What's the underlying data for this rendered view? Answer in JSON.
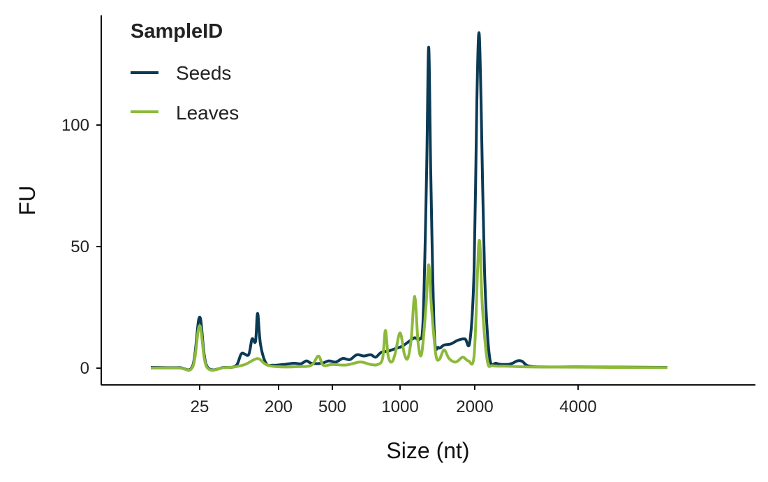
{
  "chart_data": {
    "type": "line",
    "title": "",
    "xlabel": "Size (nt)",
    "ylabel": "FU",
    "ylim": [
      -7,
      145
    ],
    "grid": false,
    "legend": {
      "title": "SampleID",
      "placement": "top-left"
    },
    "x_ticks": [
      "25",
      "200",
      "500",
      "1000",
      "2000",
      "4000"
    ],
    "y_ticks": [
      0,
      50,
      100
    ],
    "series": [
      {
        "name": "Seeds",
        "color": "#0b3a55",
        "points": [
          [
            -0.6,
            0.3
          ],
          [
            -0.2,
            0.2
          ],
          [
            0.0,
            1.0
          ],
          [
            0.1,
            21.0
          ],
          [
            0.2,
            1.0
          ],
          [
            0.45,
            0.3
          ],
          [
            0.62,
            1.0
          ],
          [
            0.7,
            6.0
          ],
          [
            0.8,
            5.5
          ],
          [
            0.85,
            12.0
          ],
          [
            0.9,
            11.0
          ],
          [
            0.93,
            22.5
          ],
          [
            0.97,
            10.0
          ],
          [
            1.05,
            2.0
          ],
          [
            1.15,
            1.2
          ],
          [
            1.3,
            1.5
          ],
          [
            1.45,
            2.0
          ],
          [
            1.55,
            1.8
          ],
          [
            1.63,
            3.0
          ],
          [
            1.7,
            2.0
          ],
          [
            1.85,
            2.0
          ],
          [
            1.95,
            3.0
          ],
          [
            2.05,
            2.5
          ],
          [
            2.15,
            4.0
          ],
          [
            2.25,
            3.5
          ],
          [
            2.35,
            5.5
          ],
          [
            2.45,
            5.0
          ],
          [
            2.55,
            5.5
          ],
          [
            2.62,
            4.5
          ],
          [
            2.7,
            6.5
          ],
          [
            2.8,
            7.0
          ],
          [
            2.9,
            8.0
          ],
          [
            3.0,
            9.0
          ],
          [
            3.1,
            11.0
          ],
          [
            3.18,
            12.5
          ],
          [
            3.25,
            12.0
          ],
          [
            3.3,
            20.0
          ],
          [
            3.35,
            80.0
          ],
          [
            3.38,
            132.0
          ],
          [
            3.41,
            80.0
          ],
          [
            3.46,
            15.0
          ],
          [
            3.52,
            8.5
          ],
          [
            3.6,
            9.5
          ],
          [
            3.7,
            10.0
          ],
          [
            3.8,
            11.5
          ],
          [
            3.9,
            12.0
          ],
          [
            3.97,
            11.0
          ],
          [
            4.03,
            40.0
          ],
          [
            4.07,
            110.0
          ],
          [
            4.1,
            138.0
          ],
          [
            4.13,
            110.0
          ],
          [
            4.18,
            40.0
          ],
          [
            4.25,
            5.0
          ],
          [
            4.35,
            2.0
          ],
          [
            4.5,
            1.5
          ],
          [
            4.58,
            2.0
          ],
          [
            4.65,
            3.0
          ],
          [
            4.72,
            2.8
          ],
          [
            4.8,
            1.0
          ],
          [
            5.0,
            0.5
          ],
          [
            5.5,
            0.5
          ],
          [
            6.0,
            0.4
          ],
          [
            6.8,
            0.3
          ]
        ]
      },
      {
        "name": "Leaves",
        "color": "#8db93b",
        "points": [
          [
            -0.6,
            0.1
          ],
          [
            -0.2,
            0.1
          ],
          [
            0.0,
            0.5
          ],
          [
            0.1,
            17.5
          ],
          [
            0.2,
            0.5
          ],
          [
            0.45,
            0.2
          ],
          [
            0.6,
            0.5
          ],
          [
            0.75,
            1.5
          ],
          [
            0.88,
            3.5
          ],
          [
            0.95,
            3.8
          ],
          [
            1.05,
            1.5
          ],
          [
            1.2,
            0.6
          ],
          [
            1.5,
            0.6
          ],
          [
            1.7,
            1.2
          ],
          [
            1.8,
            5.0
          ],
          [
            1.87,
            1.2
          ],
          [
            2.0,
            1.5
          ],
          [
            2.2,
            1.3
          ],
          [
            2.4,
            2.5
          ],
          [
            2.55,
            1.5
          ],
          [
            2.65,
            1.5
          ],
          [
            2.72,
            4.0
          ],
          [
            2.76,
            15.5
          ],
          [
            2.8,
            5.0
          ],
          [
            2.85,
            2.5
          ],
          [
            2.9,
            6.0
          ],
          [
            2.97,
            14.5
          ],
          [
            3.03,
            6.0
          ],
          [
            3.08,
            4.0
          ],
          [
            3.13,
            12.0
          ],
          [
            3.18,
            29.5
          ],
          [
            3.23,
            10.0
          ],
          [
            3.28,
            6.0
          ],
          [
            3.34,
            25.0
          ],
          [
            3.38,
            42.5
          ],
          [
            3.42,
            25.0
          ],
          [
            3.48,
            6.0
          ],
          [
            3.53,
            3.5
          ],
          [
            3.6,
            7.5
          ],
          [
            3.67,
            4.0
          ],
          [
            3.75,
            2.5
          ],
          [
            3.8,
            3.0
          ],
          [
            3.87,
            4.5
          ],
          [
            3.95,
            3.0
          ],
          [
            4.03,
            5.0
          ],
          [
            4.08,
            40.0
          ],
          [
            4.1,
            52.0
          ],
          [
            4.12,
            48.0
          ],
          [
            4.15,
            25.0
          ],
          [
            4.22,
            3.0
          ],
          [
            4.3,
            1.0
          ],
          [
            4.5,
            0.8
          ],
          [
            4.8,
            0.5
          ],
          [
            5.5,
            0.4
          ],
          [
            6.0,
            0.3
          ],
          [
            6.8,
            0.2
          ]
        ]
      }
    ]
  }
}
